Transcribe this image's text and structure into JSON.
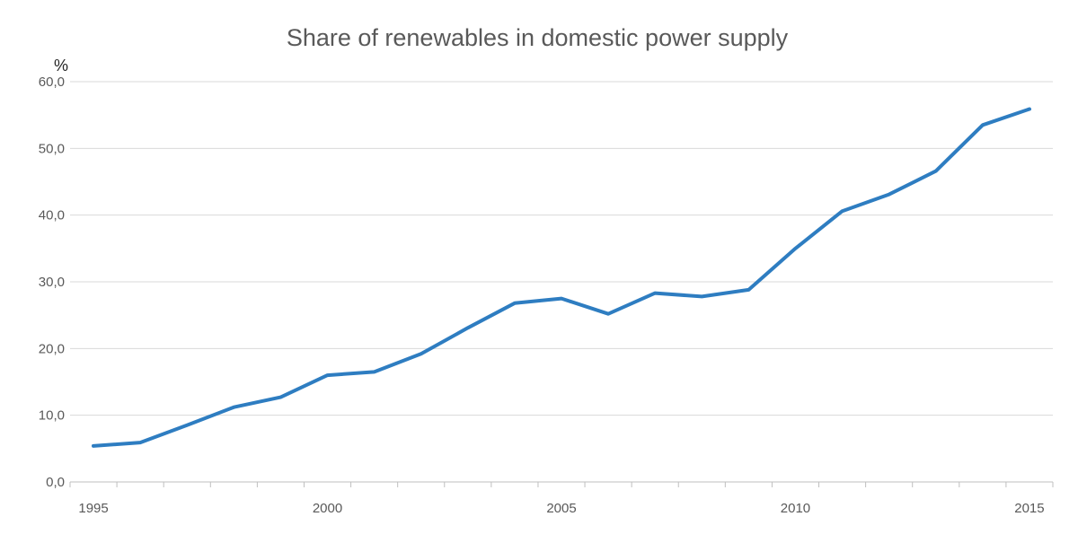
{
  "chart_data": {
    "type": "line",
    "title": "Share of renewables in domestic power supply",
    "ylabel": "%",
    "xlabel": "",
    "ylim": [
      0,
      60
    ],
    "xlim": [
      1995,
      2015
    ],
    "grid": true,
    "y_ticks": [
      {
        "value": 0,
        "label": "0,0"
      },
      {
        "value": 10,
        "label": "10,0"
      },
      {
        "value": 20,
        "label": "20,0"
      },
      {
        "value": 30,
        "label": "30,0"
      },
      {
        "value": 40,
        "label": "40,0"
      },
      {
        "value": 50,
        "label": "50,0"
      },
      {
        "value": 60,
        "label": "60,0"
      }
    ],
    "x_ticks": [
      {
        "value": 1995,
        "label": "1995"
      },
      {
        "value": 2000,
        "label": "2000"
      },
      {
        "value": 2005,
        "label": "2005"
      },
      {
        "value": 2010,
        "label": "2010"
      },
      {
        "value": 2015,
        "label": "2015"
      }
    ],
    "series": [
      {
        "name": "Share of renewables",
        "color": "#2e7dc1",
        "x": [
          1995,
          1996,
          1997,
          1998,
          1999,
          2000,
          2001,
          2002,
          2003,
          2004,
          2005,
          2006,
          2007,
          2008,
          2009,
          2010,
          2011,
          2012,
          2013,
          2014,
          2015
        ],
        "values": [
          5.4,
          5.9,
          8.5,
          11.2,
          12.7,
          16.0,
          16.5,
          19.2,
          23.1,
          26.8,
          27.5,
          25.2,
          28.3,
          27.8,
          28.8,
          35.0,
          40.6,
          43.1,
          46.6,
          53.5,
          55.9
        ]
      }
    ]
  }
}
